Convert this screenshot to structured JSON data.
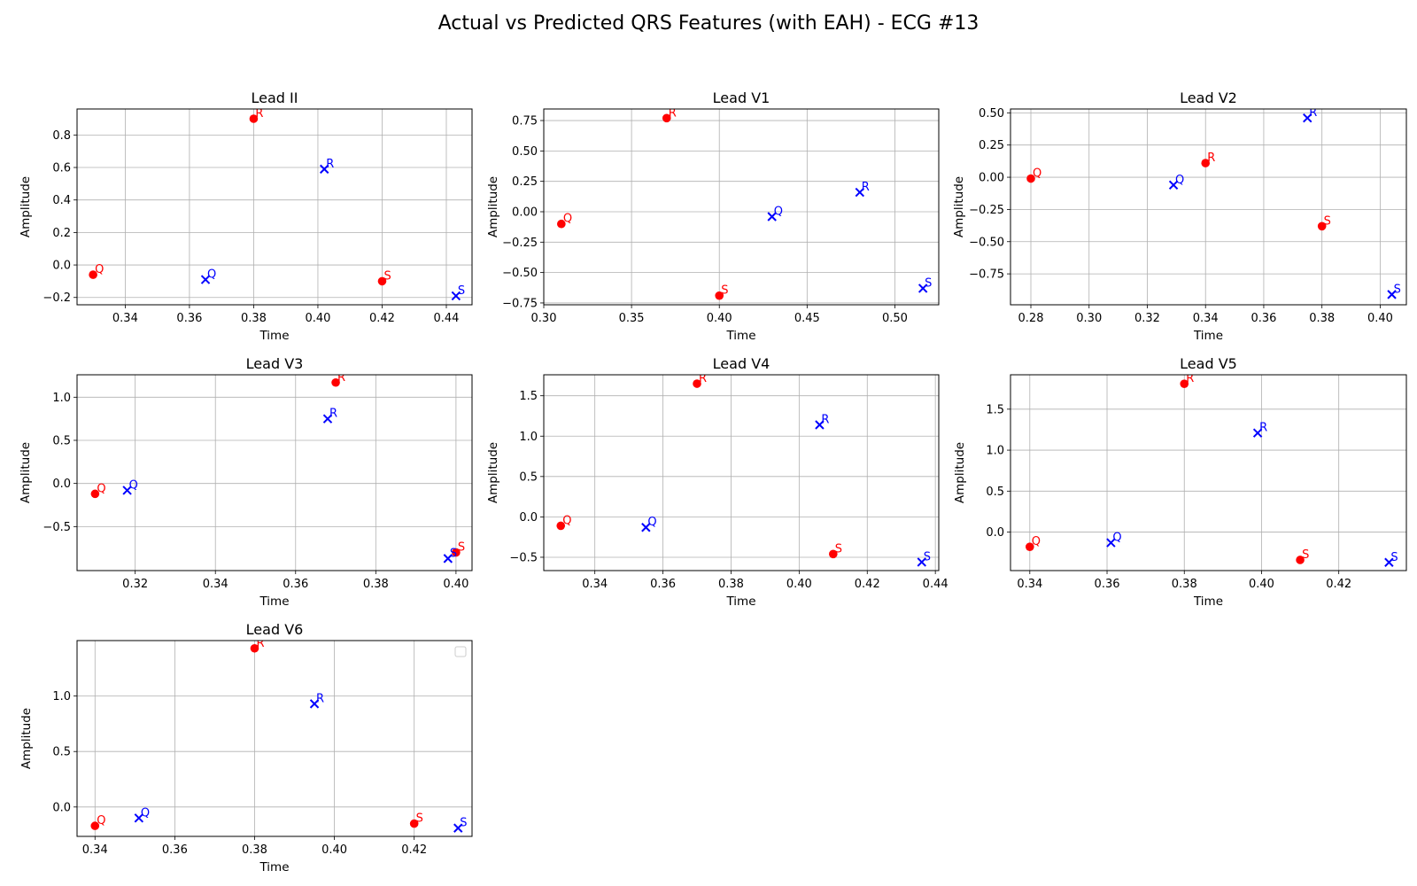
{
  "figure": {
    "title": "Actual vs Predicted QRS Features (with EAH) - ECG #13"
  },
  "colors": {
    "actual": "#ff0000",
    "predicted": "#0000ff",
    "grid": "#b0b0b0",
    "axis": "#000000"
  },
  "chart_data": [
    {
      "type": "scatter",
      "title": "Lead II",
      "xlabel": "Time",
      "ylabel": "Amplitude",
      "xlim": [
        0.325,
        0.448
      ],
      "ylim": [
        -0.245,
        0.96
      ],
      "xticks": [
        0.34,
        0.36,
        0.38,
        0.4,
        0.42,
        0.44
      ],
      "xtick_labels": [
        "0.34",
        "0.36",
        "0.38",
        "0.40",
        "0.42",
        "0.44"
      ],
      "yticks": [
        -0.2,
        0.0,
        0.2,
        0.4,
        0.6,
        0.8
      ],
      "ytick_labels": [
        "−0.2",
        "0.0",
        "0.2",
        "0.4",
        "0.6",
        "0.8"
      ],
      "grid": true,
      "legend": false,
      "series": [
        {
          "marker": "circle",
          "points": [
            {
              "label": "Q",
              "x": 0.33,
              "y": -0.06
            },
            {
              "label": "R",
              "x": 0.38,
              "y": 0.9
            },
            {
              "label": "S",
              "x": 0.42,
              "y": -0.1
            }
          ]
        },
        {
          "marker": "x",
          "points": [
            {
              "label": "Q",
              "x": 0.365,
              "y": -0.09
            },
            {
              "label": "R",
              "x": 0.402,
              "y": 0.59
            },
            {
              "label": "S",
              "x": 0.443,
              "y": -0.19
            }
          ]
        }
      ]
    },
    {
      "type": "scatter",
      "title": "Lead V1",
      "xlabel": "Time",
      "ylabel": "Amplitude",
      "xlim": [
        0.3,
        0.525
      ],
      "ylim": [
        -0.765,
        0.845
      ],
      "xticks": [
        0.3,
        0.35,
        0.4,
        0.45,
        0.5
      ],
      "xtick_labels": [
        "0.30",
        "0.35",
        "0.40",
        "0.45",
        "0.50"
      ],
      "yticks": [
        -0.75,
        -0.5,
        -0.25,
        0.0,
        0.25,
        0.5,
        0.75
      ],
      "ytick_labels": [
        "−0.75",
        "−0.50",
        "−0.25",
        "0.00",
        "0.25",
        "0.50",
        "0.75"
      ],
      "grid": true,
      "legend": false,
      "series": [
        {
          "marker": "circle",
          "points": [
            {
              "label": "Q",
              "x": 0.31,
              "y": -0.1
            },
            {
              "label": "R",
              "x": 0.37,
              "y": 0.77
            },
            {
              "label": "S",
              "x": 0.4,
              "y": -0.69
            }
          ]
        },
        {
          "marker": "x",
          "points": [
            {
              "label": "Q",
              "x": 0.43,
              "y": -0.04
            },
            {
              "label": "R",
              "x": 0.48,
              "y": 0.16
            },
            {
              "label": "S",
              "x": 0.516,
              "y": -0.63
            }
          ]
        }
      ]
    },
    {
      "type": "scatter",
      "title": "Lead V2",
      "xlabel": "Time",
      "ylabel": "Amplitude",
      "xlim": [
        0.273,
        0.409
      ],
      "ylim": [
        -0.99,
        0.53
      ],
      "xticks": [
        0.28,
        0.3,
        0.32,
        0.34,
        0.36,
        0.38,
        0.4
      ],
      "xtick_labels": [
        "0.28",
        "0.30",
        "0.32",
        "0.34",
        "0.36",
        "0.38",
        "0.40"
      ],
      "yticks": [
        -0.75,
        -0.5,
        -0.25,
        0.0,
        0.25,
        0.5
      ],
      "ytick_labels": [
        "−0.75",
        "−0.50",
        "−0.25",
        "0.00",
        "0.25",
        "0.50"
      ],
      "grid": true,
      "legend": false,
      "series": [
        {
          "marker": "circle",
          "points": [
            {
              "label": "Q",
              "x": 0.28,
              "y": -0.01
            },
            {
              "label": "R",
              "x": 0.34,
              "y": 0.11
            },
            {
              "label": "S",
              "x": 0.38,
              "y": -0.38
            }
          ]
        },
        {
          "marker": "x",
          "points": [
            {
              "label": "Q",
              "x": 0.329,
              "y": -0.06
            },
            {
              "label": "R",
              "x": 0.375,
              "y": 0.46
            },
            {
              "label": "S",
              "x": 0.404,
              "y": -0.91
            }
          ]
        }
      ]
    },
    {
      "type": "scatter",
      "title": "Lead V3",
      "xlabel": "Time",
      "ylabel": "Amplitude",
      "xlim": [
        0.3055,
        0.404
      ],
      "ylim": [
        -1.01,
        1.26
      ],
      "xticks": [
        0.32,
        0.34,
        0.36,
        0.38,
        0.4
      ],
      "xtick_labels": [
        "0.32",
        "0.34",
        "0.36",
        "0.38",
        "0.40"
      ],
      "yticks": [
        -0.5,
        0.0,
        0.5,
        1.0
      ],
      "ytick_labels": [
        "−0.5",
        "0.0",
        "0.5",
        "1.0"
      ],
      "grid": true,
      "legend": false,
      "series": [
        {
          "marker": "circle",
          "points": [
            {
              "label": "Q",
              "x": 0.31,
              "y": -0.12
            },
            {
              "label": "R",
              "x": 0.37,
              "y": 1.17
            },
            {
              "label": "S",
              "x": 0.4,
              "y": -0.8
            }
          ]
        },
        {
          "marker": "x",
          "points": [
            {
              "label": "Q",
              "x": 0.318,
              "y": -0.08
            },
            {
              "label": "R",
              "x": 0.368,
              "y": 0.75
            },
            {
              "label": "S",
              "x": 0.398,
              "y": -0.87
            }
          ]
        }
      ]
    },
    {
      "type": "scatter",
      "title": "Lead V4",
      "xlabel": "Time",
      "ylabel": "Amplitude",
      "xlim": [
        0.325,
        0.441
      ],
      "ylim": [
        -0.665,
        1.76
      ],
      "xticks": [
        0.34,
        0.36,
        0.38,
        0.4,
        0.42,
        0.44
      ],
      "xtick_labels": [
        "0.34",
        "0.36",
        "0.38",
        "0.40",
        "0.42",
        "0.44"
      ],
      "yticks": [
        -0.5,
        0.0,
        0.5,
        1.0,
        1.5
      ],
      "ytick_labels": [
        "−0.5",
        "0.0",
        "0.5",
        "1.0",
        "1.5"
      ],
      "grid": true,
      "legend": false,
      "series": [
        {
          "marker": "circle",
          "points": [
            {
              "label": "Q",
              "x": 0.33,
              "y": -0.11
            },
            {
              "label": "R",
              "x": 0.37,
              "y": 1.65
            },
            {
              "label": "S",
              "x": 0.41,
              "y": -0.46
            }
          ]
        },
        {
          "marker": "x",
          "points": [
            {
              "label": "Q",
              "x": 0.355,
              "y": -0.13
            },
            {
              "label": "R",
              "x": 0.406,
              "y": 1.14
            },
            {
              "label": "S",
              "x": 0.436,
              "y": -0.56
            }
          ]
        }
      ]
    },
    {
      "type": "scatter",
      "title": "Lead V5",
      "xlabel": "Time",
      "ylabel": "Amplitude",
      "xlim": [
        0.335,
        0.4375
      ],
      "ylim": [
        -0.47,
        1.92
      ],
      "xticks": [
        0.34,
        0.36,
        0.38,
        0.4,
        0.42
      ],
      "xtick_labels": [
        "0.34",
        "0.36",
        "0.38",
        "0.40",
        "0.42"
      ],
      "yticks": [
        0.0,
        0.5,
        1.0,
        1.5
      ],
      "ytick_labels": [
        "0.0",
        "0.5",
        "1.0",
        "1.5"
      ],
      "grid": true,
      "legend": false,
      "series": [
        {
          "marker": "circle",
          "points": [
            {
              "label": "Q",
              "x": 0.34,
              "y": -0.18
            },
            {
              "label": "R",
              "x": 0.38,
              "y": 1.81
            },
            {
              "label": "S",
              "x": 0.41,
              "y": -0.34
            }
          ]
        },
        {
          "marker": "x",
          "points": [
            {
              "label": "Q",
              "x": 0.361,
              "y": -0.13
            },
            {
              "label": "R",
              "x": 0.399,
              "y": 1.21
            },
            {
              "label": "S",
              "x": 0.433,
              "y": -0.37
            }
          ]
        }
      ]
    },
    {
      "type": "scatter",
      "title": "Lead V6",
      "xlabel": "Time",
      "ylabel": "Amplitude",
      "xlim": [
        0.3355,
        0.4345
      ],
      "ylim": [
        -0.265,
        1.5
      ],
      "xticks": [
        0.34,
        0.36,
        0.38,
        0.4,
        0.42
      ],
      "xtick_labels": [
        "0.34",
        "0.36",
        "0.38",
        "0.40",
        "0.42"
      ],
      "yticks": [
        0.0,
        0.5,
        1.0
      ],
      "ytick_labels": [
        "0.0",
        "0.5",
        "1.0"
      ],
      "grid": true,
      "legend": "top-right (empty)",
      "series": [
        {
          "marker": "circle",
          "points": [
            {
              "label": "Q",
              "x": 0.34,
              "y": -0.17
            },
            {
              "label": "R",
              "x": 0.38,
              "y": 1.43
            },
            {
              "label": "S",
              "x": 0.42,
              "y": -0.15
            }
          ]
        },
        {
          "marker": "x",
          "points": [
            {
              "label": "Q",
              "x": 0.351,
              "y": -0.1
            },
            {
              "label": "R",
              "x": 0.395,
              "y": 0.93
            },
            {
              "label": "S",
              "x": 0.431,
              "y": -0.19
            }
          ]
        }
      ]
    }
  ]
}
